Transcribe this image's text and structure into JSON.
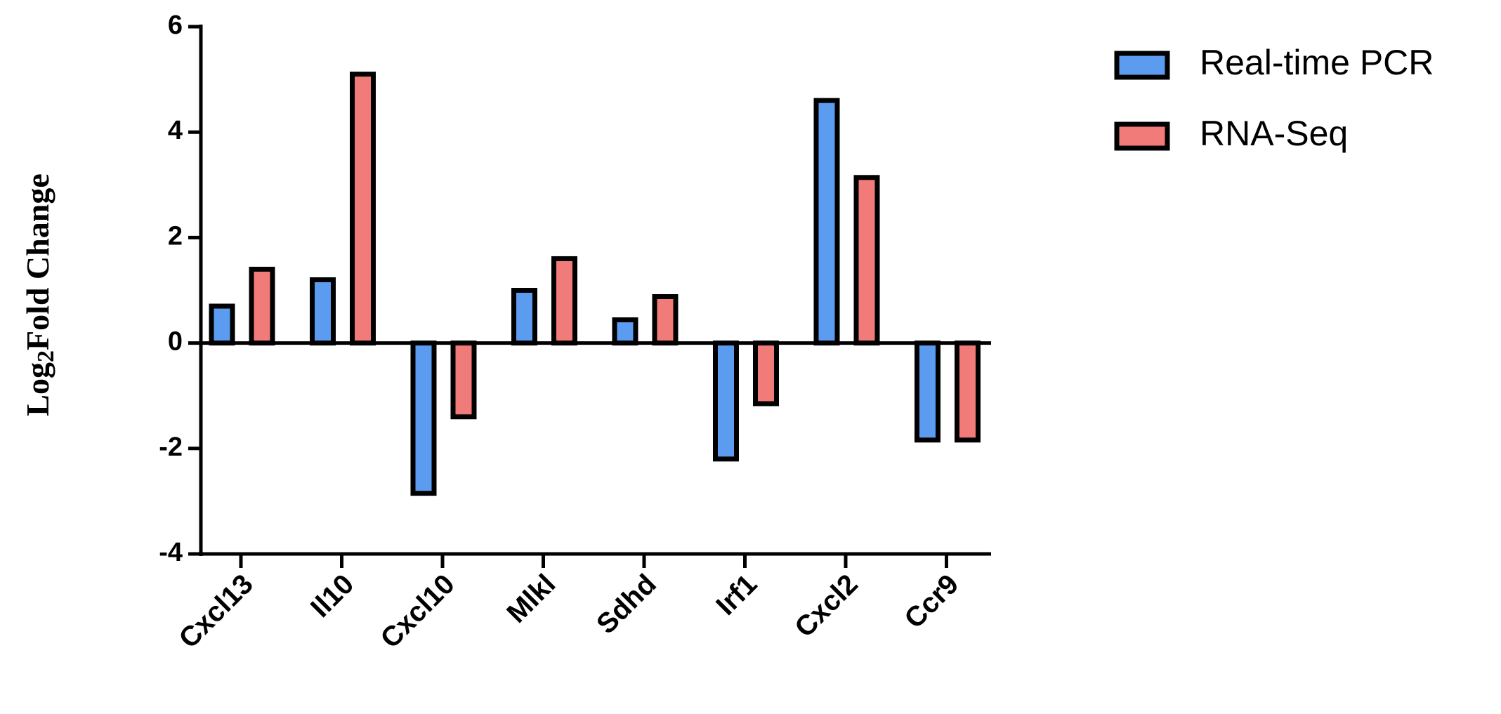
{
  "chart_data": {
    "type": "bar",
    "y_label_parts": [
      "Log",
      "2",
      "Fold Change"
    ],
    "categories": [
      "Cxcl13",
      "Il10",
      "Cxcl10",
      "Mlkl",
      "Sdhd",
      "Irf1",
      "Cxcl2",
      "Ccr9"
    ],
    "series": [
      {
        "name": "Real-time PCR",
        "color": "#5b9bf0",
        "values": [
          0.7,
          1.2,
          -2.85,
          1.0,
          0.44,
          -2.2,
          4.6,
          -1.84
        ]
      },
      {
        "name": "RNA-Seq",
        "color": "#f07b78",
        "values": [
          1.4,
          5.1,
          -1.4,
          1.6,
          0.88,
          -1.15,
          3.14,
          -1.84
        ]
      }
    ],
    "ylim": [
      -4,
      6
    ],
    "yticks": [
      -4,
      -2,
      0,
      2,
      4,
      6
    ],
    "legend": "right"
  }
}
